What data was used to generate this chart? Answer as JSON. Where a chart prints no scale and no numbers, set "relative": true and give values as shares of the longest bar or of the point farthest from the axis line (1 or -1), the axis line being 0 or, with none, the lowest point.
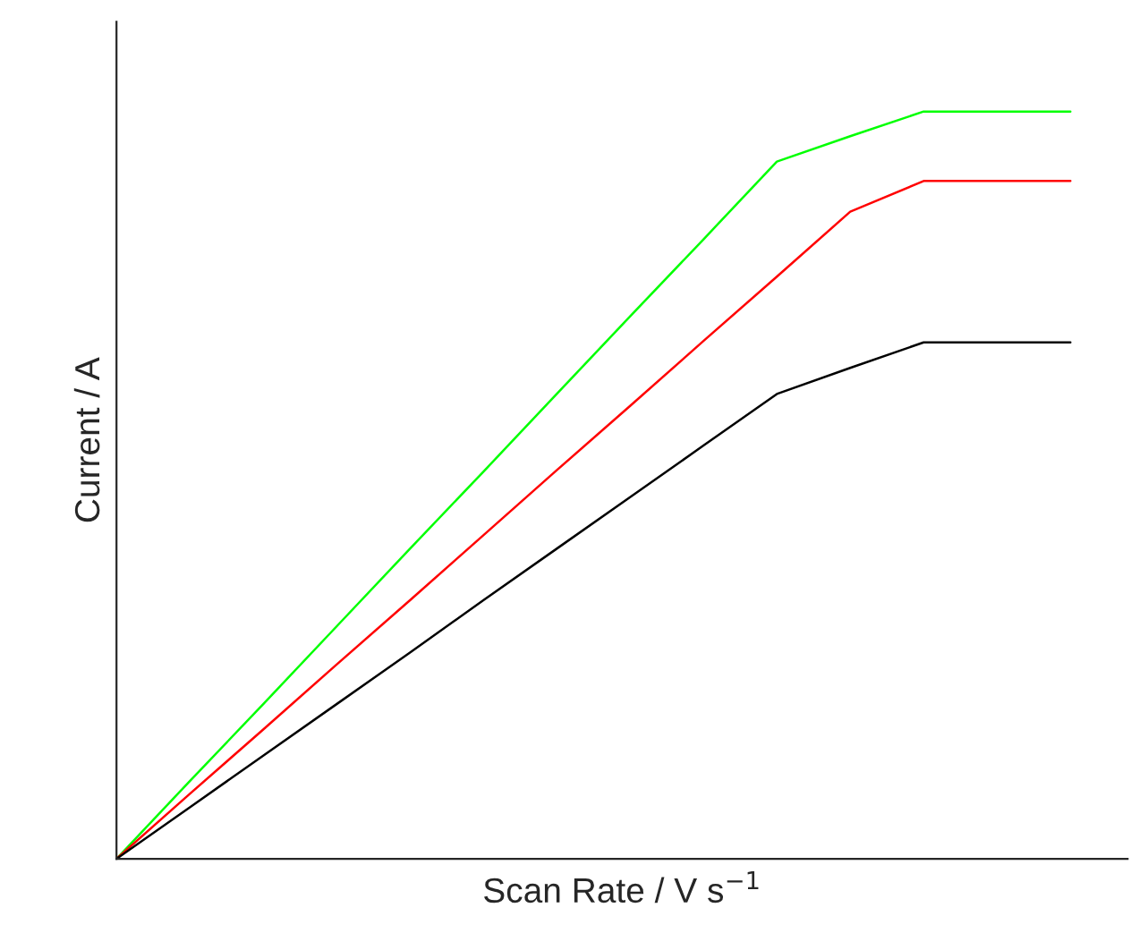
{
  "chart_data": {
    "type": "line",
    "relative": true,
    "xlabel": "Scan Rate / V s$^{−1}$",
    "ylabel": "Current / A",
    "categories": [
      null,
      null,
      null,
      null,
      null,
      null,
      null,
      null,
      null,
      null,
      null,
      null,
      null,
      null
    ],
    "grid": false,
    "legend": false,
    "marker": "none",
    "line_style": "solid",
    "series": [
      {
        "color": "#00ff00",
        "values": [
          0,
          0.104,
          0.207,
          0.311,
          0.415,
          0.518,
          0.622,
          0.726,
          0.829,
          0.933,
          0.967,
          1,
          1,
          1
        ]
      },
      {
        "color": "#ff0000",
        "values": [
          0,
          0.087,
          0.173,
          0.26,
          0.346,
          0.433,
          0.52,
          0.606,
          0.693,
          0.779,
          0.866,
          0.907,
          0.907,
          0.907
        ]
      },
      {
        "color": "#000000",
        "values": [
          0,
          0.069,
          0.138,
          0.207,
          0.276,
          0.346,
          0.415,
          0.484,
          0.553,
          0.622,
          0.657,
          0.691,
          0.691,
          0.691
        ]
      }
    ]
  }
}
